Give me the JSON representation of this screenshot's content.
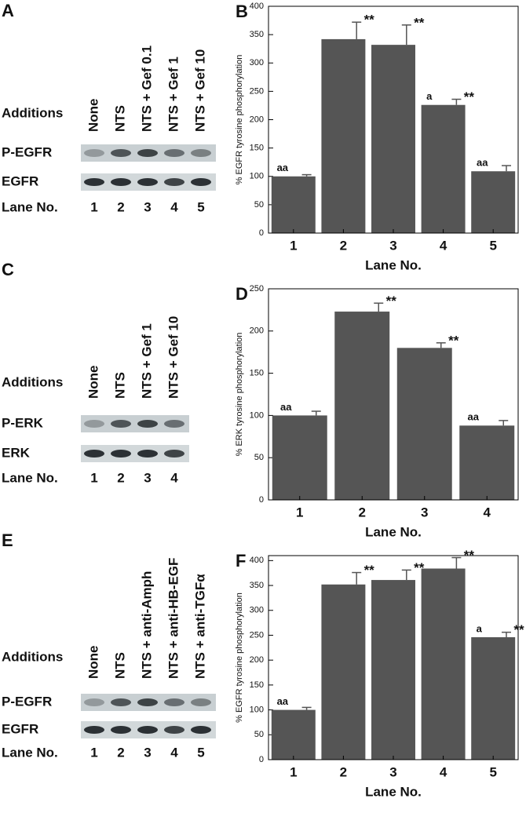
{
  "chart_data": [
    {
      "type": "bar",
      "panel": "B",
      "ylabel": "% EGFR tyrosine phosphorylation",
      "xlabel": "Lane No.",
      "categories": [
        "1",
        "2",
        "3",
        "4",
        "5"
      ],
      "values": [
        100,
        342,
        332,
        226,
        109
      ],
      "errors": [
        3,
        30,
        35,
        10,
        10
      ],
      "annotations": [
        [
          "aa"
        ],
        [
          "**"
        ],
        [
          "**"
        ],
        [
          "a",
          "**"
        ],
        [
          "aa"
        ]
      ],
      "color": "#555555",
      "ylim": [
        0,
        400
      ],
      "yticks": [
        0,
        50,
        100,
        150,
        200,
        250,
        300,
        350,
        400
      ]
    },
    {
      "type": "bar",
      "panel": "D",
      "ylabel": "% ERK tyrosine phosphorylation",
      "xlabel": "Lane No.",
      "categories": [
        "1",
        "2",
        "3",
        "4"
      ],
      "values": [
        100,
        223,
        180,
        88
      ],
      "errors": [
        5,
        10,
        6,
        6
      ],
      "annotations": [
        [
          "aa"
        ],
        [
          "**"
        ],
        [
          "**"
        ],
        [
          "aa"
        ]
      ],
      "color": "#555555",
      "ylim": [
        0,
        250
      ],
      "yticks": [
        0,
        50,
        100,
        150,
        200,
        250
      ]
    },
    {
      "type": "bar",
      "panel": "F",
      "ylabel": "% EGFR tyrosine phosphorylation",
      "xlabel": "Lane No.",
      "categories": [
        "1",
        "2",
        "3",
        "4",
        "5"
      ],
      "values": [
        100,
        352,
        361,
        384,
        246
      ],
      "errors": [
        5,
        24,
        20,
        22,
        10
      ],
      "annotations": [
        [
          "aa"
        ],
        [
          "**"
        ],
        [
          "**"
        ],
        [
          "**"
        ],
        [
          "a",
          "**"
        ]
      ],
      "color": "#555555",
      "ylim": [
        0,
        410
      ],
      "yticks": [
        0,
        50,
        100,
        150,
        200,
        250,
        300,
        350,
        400
      ]
    }
  ],
  "blots": [
    {
      "panel": "A",
      "additions": "Additions",
      "lanes": [
        "None",
        "NTS",
        "NTS + Gef 0.1",
        "NTS + Gef 1",
        "NTS + Gef 10"
      ],
      "rows": [
        "P-EGFR",
        "EGFR"
      ],
      "lane_no": "Lane No.",
      "lane_numbers": [
        "1",
        "2",
        "3",
        "4",
        "5"
      ]
    },
    {
      "panel": "C",
      "additions": "Additions",
      "lanes": [
        "None",
        "NTS",
        "NTS + Gef 1",
        "NTS + Gef 10"
      ],
      "rows": [
        "P-ERK",
        "ERK"
      ],
      "lane_no": "Lane No.",
      "lane_numbers": [
        "1",
        "2",
        "3",
        "4"
      ]
    },
    {
      "panel": "E",
      "additions": "Additions",
      "lanes": [
        "None",
        "NTS",
        "NTS + anti-Amph",
        "NTS + anti-HB-EGF",
        "NTS + anti-TGFα"
      ],
      "rows": [
        "P-EGFR",
        "EGFR"
      ],
      "lane_no": "Lane No.",
      "lane_numbers": [
        "1",
        "2",
        "3",
        "4",
        "5"
      ]
    }
  ]
}
